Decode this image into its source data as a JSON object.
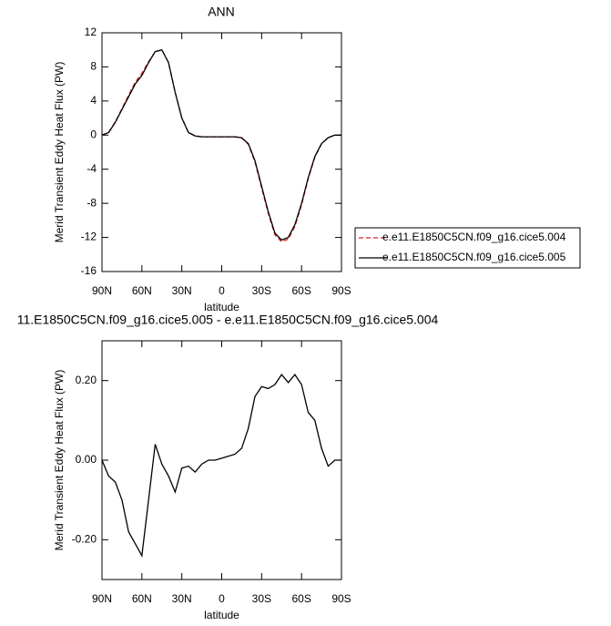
{
  "chart_data": [
    {
      "type": "line",
      "title": "ANN",
      "xlabel": "latitude",
      "ylabel": "Merid Transient Eddy Heat Flux (PW)",
      "x": [
        90,
        85,
        80,
        75,
        70,
        65,
        60,
        55,
        50,
        45,
        40,
        35,
        30,
        25,
        20,
        15,
        10,
        5,
        0,
        -5,
        -10,
        -15,
        -20,
        -25,
        -30,
        -35,
        -40,
        -45,
        -50,
        -55,
        -60,
        -65,
        -70,
        -75,
        -80,
        -85,
        -90
      ],
      "xlim": [
        90,
        -90
      ],
      "xticks": [
        {
          "value": 90,
          "label": "90N"
        },
        {
          "value": 60,
          "label": "60N"
        },
        {
          "value": 30,
          "label": "30N"
        },
        0,
        {
          "value": -30,
          "label": "30S"
        },
        {
          "value": -60,
          "label": "60S"
        },
        {
          "value": -90,
          "label": "90S"
        }
      ],
      "ylim": [
        -16,
        12
      ],
      "yticks": [
        -16,
        -12,
        -8,
        -4,
        0,
        4,
        8,
        12
      ],
      "series": [
        {
          "name": "e.e11.E1850C5CN.f09_g16.cice5.004",
          "color": "#d62020",
          "dashed": true,
          "values": [
            0,
            0.34,
            1.555,
            3.1,
            4.68,
            6.21,
            7.24,
            8.6,
            9.76,
            10.01,
            8.54,
            5.08,
            2.02,
            0.315,
            -0.07,
            -0.19,
            -0.2,
            -0.2,
            -0.205,
            -0.21,
            -0.215,
            -0.33,
            -1.08,
            -3.16,
            -6.185,
            -9.18,
            -11.69,
            -12.515,
            -12.195,
            -10.715,
            -8.19,
            -5.12,
            -2.6,
            -1.03,
            -0.285,
            0,
            0
          ]
        },
        {
          "name": "e.e11.E1850C5CN.f09_g16.cice5.005",
          "color": "#000000",
          "dashed": false,
          "values": [
            0,
            0.3,
            1.5,
            3,
            4.5,
            6,
            7,
            8.5,
            9.8,
            10,
            8.5,
            5,
            2,
            0.3,
            -0.1,
            -0.2,
            -0.2,
            -0.2,
            -0.2,
            -0.2,
            -0.2,
            -0.3,
            -1,
            -3,
            -6,
            -9,
            -11.5,
            -12.3,
            -12,
            -10.5,
            -8,
            -5,
            -2.5,
            -1,
            -0.3,
            0,
            0
          ]
        }
      ]
    },
    {
      "type": "line",
      "title": "11.E1850C5CN.f09_g16.cice5.005 - e.e11.E1850C5CN.f09_g16.cice5.004",
      "xlabel": "latitude",
      "ylabel": "Merid Transient Eddy Heat Flux (PW)",
      "x": [
        90,
        85,
        80,
        75,
        70,
        65,
        60,
        55,
        50,
        45,
        40,
        35,
        30,
        25,
        20,
        15,
        10,
        5,
        0,
        -5,
        -10,
        -15,
        -20,
        -25,
        -30,
        -35,
        -40,
        -45,
        -50,
        -55,
        -60,
        -65,
        -70,
        -75,
        -80,
        -85,
        -90
      ],
      "xlim": [
        90,
        -90
      ],
      "xticks": [
        {
          "value": 90,
          "label": "90N"
        },
        {
          "value": 60,
          "label": "60N"
        },
        {
          "value": 30,
          "label": "30N"
        },
        0,
        {
          "value": -30,
          "label": "30S"
        },
        {
          "value": -60,
          "label": "60S"
        },
        {
          "value": -90,
          "label": "90S"
        }
      ],
      "ylim": [
        -0.3,
        0.3
      ],
      "yticks": [
        {
          "value": -0.2,
          "label": "-0.20"
        },
        {
          "value": 0,
          "label": "0.00"
        },
        {
          "value": 0.2,
          "label": "0.20"
        }
      ],
      "series": [
        {
          "color": "#000000",
          "dashed": false,
          "values": [
            0,
            -0.04,
            -0.055,
            -0.1,
            -0.18,
            -0.21,
            -0.24,
            -0.1,
            0.04,
            -0.01,
            -0.04,
            -0.08,
            -0.02,
            -0.015,
            -0.03,
            -0.01,
            0,
            0,
            0.005,
            0.01,
            0.015,
            0.03,
            0.08,
            0.16,
            0.185,
            0.18,
            0.19,
            0.215,
            0.195,
            0.215,
            0.19,
            0.12,
            0.1,
            0.03,
            -0.015,
            0,
            0
          ]
        }
      ]
    }
  ]
}
